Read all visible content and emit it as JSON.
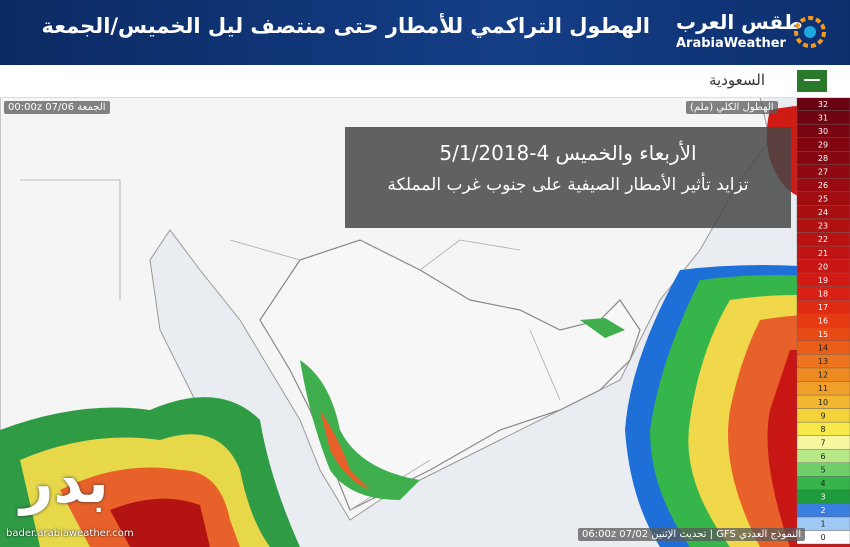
{
  "header": {
    "title": "الهطول التراكمي للأمطار حتى منتصف ليل الخميس/الجمعة",
    "logo_arabic": "طقس العرب",
    "logo_latin": "ArabiaWeather"
  },
  "region": "السعودية",
  "valid_time": "الجمعة 07/06 00:00z",
  "overlay": {
    "line1": "الأربعاء والخميس 4-5/1/2018",
    "line2": "تزايد تأثير الأمطار الصيفية على جنوب غرب المملكة"
  },
  "legend": {
    "title": "الهطول الكلي (ملم)",
    "ticks": [
      0,
      1,
      2,
      3,
      4,
      5,
      6,
      7,
      8,
      9,
      10,
      11,
      12,
      13,
      14,
      15,
      16,
      17,
      18,
      19,
      20,
      21,
      22,
      23,
      24,
      25,
      26,
      27,
      28,
      29,
      30,
      31,
      32
    ],
    "colors": [
      "#ffffff",
      "#9ec9f5",
      "#3a7fe0",
      "#1f9a3c",
      "#36b54a",
      "#6fd06a",
      "#b8e986",
      "#f7f7a0",
      "#f5e94c",
      "#f3d23a",
      "#f2b630",
      "#f0a028",
      "#ee8a22",
      "#ec741d",
      "#ea5e18",
      "#e74a15",
      "#e53a14",
      "#e02a14",
      "#d82014",
      "#d01a14",
      "#c81614",
      "#c01414",
      "#b81212",
      "#b01010",
      "#a80e10",
      "#a00c10",
      "#980a10",
      "#900810",
      "#880610",
      "#800510",
      "#780410",
      "#700310",
      "#680210"
    ]
  },
  "footer": {
    "model": "النموذج العددي GFS | تحديث الإثنين 07/02 06:00z",
    "watermark": "بدر",
    "website": "bader.arabiaweather.com"
  }
}
